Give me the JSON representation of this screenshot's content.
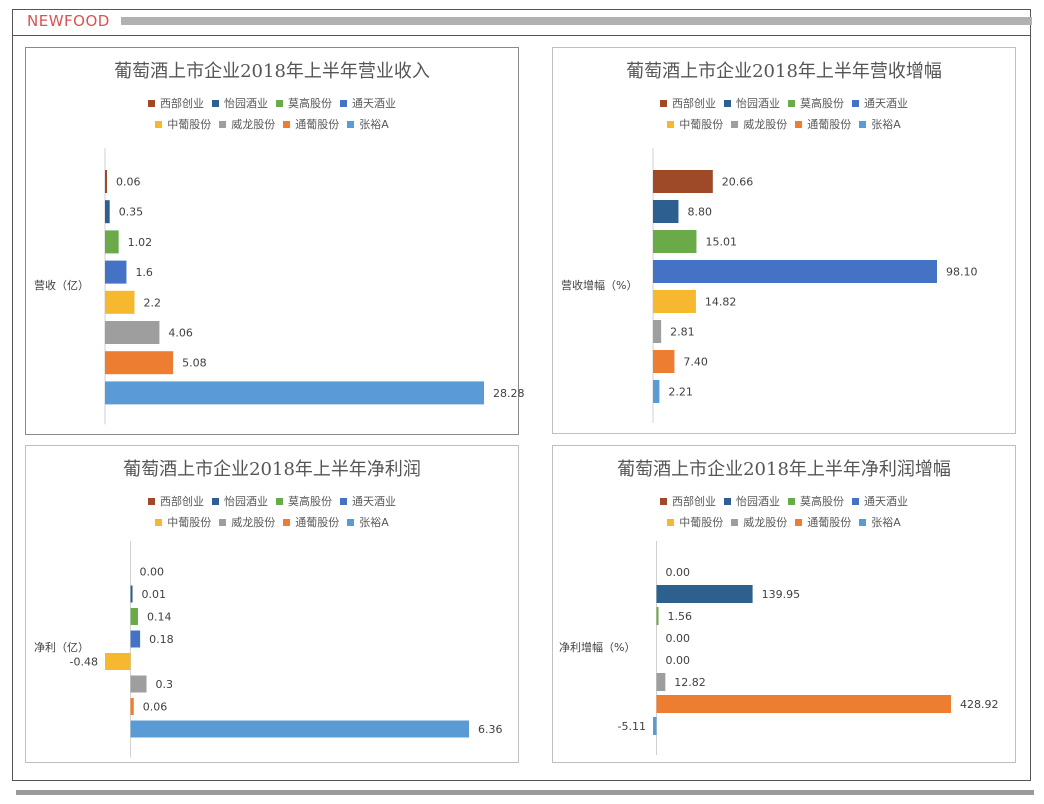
{
  "header": {
    "brand": "NEWFOOD"
  },
  "chart_data": [
    {
      "type": "bar",
      "title": "葡萄酒上市企业2018年上半年营业收入",
      "ylabel": "营收（亿）",
      "categories": [
        "西部创业",
        "怡园酒业",
        "莫高股份",
        "通天酒业",
        "中葡股份",
        "威龙股份",
        "通葡股份",
        "张裕A"
      ],
      "values": [
        0.06,
        0.35,
        1.02,
        1.6,
        2.2,
        4.06,
        5.08,
        28.28
      ],
      "value_labels": [
        "0.06",
        "0.35",
        "1.02",
        "1.6",
        "2.2",
        "4.06",
        "5.08",
        "28.28"
      ],
      "xlim": [
        0,
        28.28
      ],
      "colors": [
        "#9e4a28",
        "#2d5f8f",
        "#6aaa48",
        "#4472c4",
        "#f5b82e",
        "#9e9e9e",
        "#ed7d31",
        "#5b9bd5"
      ],
      "legend_position": "top",
      "grid": false
    },
    {
      "type": "bar",
      "title": "葡萄酒上市企业2018年上半年营收增幅",
      "ylabel": "营收增幅（%）",
      "categories": [
        "西部创业",
        "怡园酒业",
        "莫高股份",
        "通天酒业",
        "中葡股份",
        "威龙股份",
        "通葡股份",
        "张裕A"
      ],
      "values": [
        20.66,
        8.8,
        15.01,
        98.1,
        14.82,
        2.81,
        7.4,
        2.21
      ],
      "value_labels": [
        "20.66",
        "8.80",
        "15.01",
        "98.10",
        "14.82",
        "2.81",
        "7.40",
        "2.21"
      ],
      "xlim": [
        0,
        98.1
      ],
      "colors": [
        "#9e4a28",
        "#2d5f8f",
        "#6aaa48",
        "#4472c4",
        "#f5b82e",
        "#9e9e9e",
        "#ed7d31",
        "#5b9bd5"
      ],
      "legend_position": "top",
      "grid": false
    },
    {
      "type": "bar",
      "title": "葡萄酒上市企业2018年上半年净利润",
      "ylabel": "净利（亿）",
      "categories": [
        "西部创业",
        "怡园酒业",
        "莫高股份",
        "通天酒业",
        "中葡股份",
        "威龙股份",
        "通葡股份",
        "张裕A"
      ],
      "values": [
        0.0,
        0.01,
        0.14,
        0.18,
        -0.48,
        0.3,
        0.06,
        6.36
      ],
      "value_labels": [
        "0.00",
        "0.01",
        "0.14",
        "0.18",
        "-0.48",
        "0.3",
        "0.06",
        "6.36"
      ],
      "xlim": [
        -0.48,
        6.36
      ],
      "colors": [
        "#9e4a28",
        "#2d5f8f",
        "#6aaa48",
        "#4472c4",
        "#f5b82e",
        "#9e9e9e",
        "#ed7d31",
        "#5b9bd5"
      ],
      "legend_position": "top",
      "grid": false
    },
    {
      "type": "bar",
      "title": "葡萄酒上市企业2018年上半年净利润增幅",
      "ylabel": "净利增幅（%）",
      "categories": [
        "西部创业",
        "怡园酒业",
        "莫高股份",
        "通天酒业",
        "中葡股份",
        "威龙股份",
        "通葡股份",
        "张裕A"
      ],
      "values": [
        0.0,
        139.95,
        1.56,
        0.0,
        0.0,
        12.82,
        428.92,
        -5.11
      ],
      "value_labels": [
        "0.00",
        "139.95",
        "1.56",
        "0.00",
        "0.00",
        "12.82",
        "428.92",
        "-5.11"
      ],
      "xlim": [
        -5.11,
        428.92
      ],
      "colors": [
        "#9e4a28",
        "#2d5f8f",
        "#6aaa48",
        "#4472c4",
        "#f5b82e",
        "#9e9e9e",
        "#ed7d31",
        "#5b9bd5"
      ],
      "legend_position": "top",
      "grid": false
    }
  ]
}
